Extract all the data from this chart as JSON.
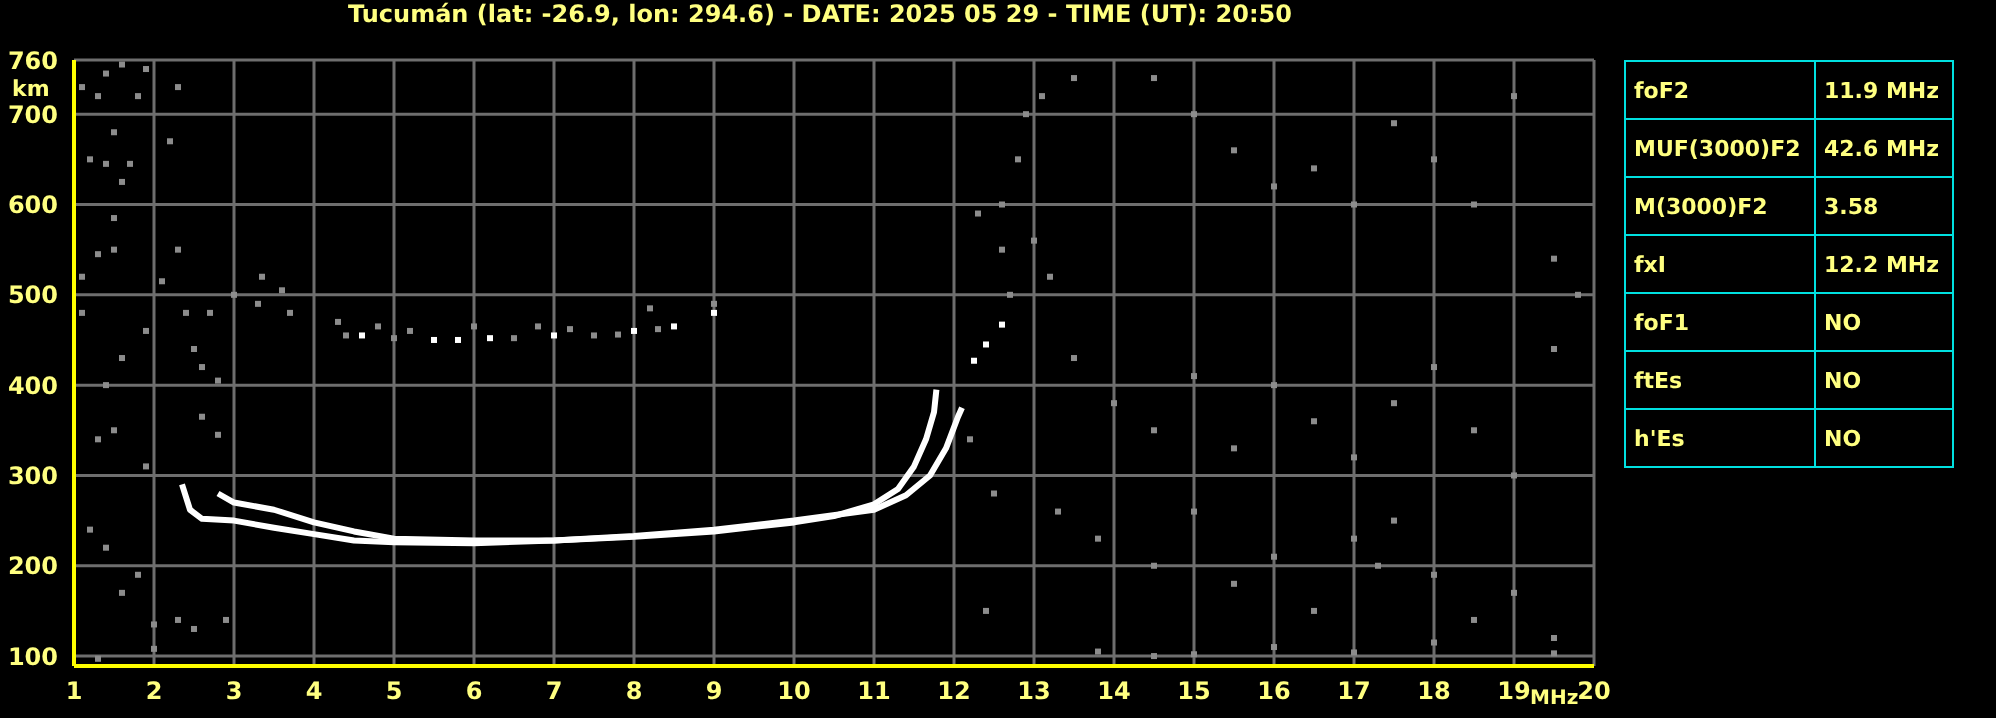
{
  "chart_data": [
    {
      "type": "line",
      "title": "Tucumán (lat: -26.9, lon: 294.6) - DATE: 2025 05 29 - TIME (UT): 20:50",
      "xlabel": "MHz",
      "ylabel": "km",
      "xlim": [
        1,
        20
      ],
      "ylim": [
        89,
        760
      ],
      "xticks": [
        1,
        2,
        3,
        4,
        5,
        6,
        7,
        8,
        9,
        10,
        11,
        12,
        13,
        14,
        15,
        16,
        17,
        18,
        19,
        20
      ],
      "yticks": [
        100,
        200,
        300,
        400,
        500,
        600,
        700,
        760
      ],
      "grid": true,
      "series": [
        {
          "type": "line",
          "color": "#ffffff",
          "x": [
            2.8,
            3,
            3.5,
            4,
            4.5,
            5,
            6,
            7,
            8,
            9,
            10,
            10.5,
            11,
            11.3,
            11.5,
            11.65,
            11.75,
            11.78
          ],
          "values": [
            280,
            270,
            262,
            248,
            238,
            230,
            228,
            228,
            232,
            238,
            248,
            255,
            268,
            285,
            310,
            340,
            370,
            395
          ]
        },
        {
          "type": "line",
          "color": "#ffffff",
          "x": [
            2.35,
            2.45,
            2.6,
            3,
            3.5,
            4,
            4.5,
            5,
            6,
            7,
            8,
            9,
            10,
            11,
            11.4,
            11.7,
            11.9,
            12.05,
            12.1
          ],
          "values": [
            290,
            262,
            252,
            250,
            242,
            235,
            228,
            226,
            225,
            228,
            233,
            240,
            250,
            262,
            278,
            300,
            330,
            365,
            375
          ]
        },
        {
          "type": "scatter",
          "color": "#ffffff",
          "marker": "square",
          "x": [
            12.25,
            12.4,
            12.6,
            4.6,
            5.5,
            5.8,
            6.2,
            7,
            8,
            8.5,
            9
          ],
          "values": [
            427,
            445,
            467,
            455,
            450,
            450,
            452,
            455,
            460,
            465,
            480
          ]
        },
        {
          "type": "scatter",
          "color": "#8c8c8c",
          "marker": "square",
          "x": [
            1.1,
            1.3,
            1.4,
            1.6,
            1.9,
            1.8,
            1.5,
            1.2,
            1.4,
            1.7,
            1.6,
            1.5,
            1.5,
            1.3,
            2.2,
            2.3,
            2.3,
            1.1,
            1.1,
            2.1,
            2.4,
            1.9,
            1.6,
            1.4,
            1.5,
            1.3,
            1.9,
            1.2,
            1.4,
            1.6,
            1.8,
            2.0,
            2.3,
            2.0,
            1.3,
            2.7,
            3.0,
            3.35,
            3.6,
            3.7,
            3.3,
            2.6,
            2.5,
            2.8,
            2.6,
            2.8,
            2.5,
            2.9,
            4.3,
            4.4,
            4.8,
            5,
            5.2,
            6,
            6.5,
            6.8,
            7.2,
            7.5,
            7.8,
            8.3,
            8.2,
            9,
            12.3,
            12.6,
            12.8,
            12.9,
            13.1,
            13.5,
            12.6,
            13,
            13.2,
            12.7,
            14.5,
            15,
            15.5,
            16,
            16.5,
            17,
            17.5,
            18,
            18.5,
            19,
            19.5,
            19.8,
            13.5,
            14,
            14.5,
            15,
            15.5,
            16,
            16.5,
            17,
            17.5,
            18,
            18.5,
            19,
            19.5,
            13.3,
            13.8,
            14.5,
            15,
            15.5,
            16,
            16.5,
            17,
            17.3,
            17.5,
            18,
            18.5,
            19,
            19.5,
            13.8,
            14.5,
            15,
            16,
            17,
            18,
            19.5,
            12.4,
            12.5,
            12.2
          ],
          "values": [
            730,
            720,
            745,
            755,
            750,
            720,
            680,
            650,
            645,
            645,
            625,
            585,
            550,
            545,
            670,
            730,
            550,
            520,
            480,
            515,
            480,
            460,
            430,
            400,
            350,
            340,
            310,
            240,
            220,
            170,
            190,
            135,
            140,
            108,
            97,
            480,
            500,
            520,
            505,
            480,
            490,
            420,
            440,
            405,
            365,
            345,
            130,
            140,
            470,
            455,
            465,
            452,
            460,
            465,
            452,
            465,
            462,
            455,
            456,
            462,
            485,
            490,
            590,
            600,
            650,
            700,
            720,
            740,
            550,
            560,
            520,
            500,
            740,
            700,
            660,
            620,
            640,
            600,
            690,
            650,
            600,
            720,
            540,
            500,
            430,
            380,
            350,
            410,
            330,
            400,
            360,
            320,
            380,
            420,
            350,
            300,
            440,
            260,
            230,
            200,
            260,
            180,
            210,
            150,
            230,
            200,
            250,
            190,
            140,
            170,
            120,
            105,
            100,
            102,
            110,
            104,
            115,
            103,
            150,
            280,
            340
          ]
        }
      ]
    },
    {
      "type": "other",
      "annotations": [
        "foF2",
        "11.9 MHz",
        "MUF(3000)F2",
        "42.6 MHz",
        "M(3000)F2",
        "3.58",
        "fxI",
        "12.2 MHz",
        "foF1",
        "NO",
        "ftEs",
        "NO",
        "h'Es",
        "NO"
      ]
    }
  ]
}
